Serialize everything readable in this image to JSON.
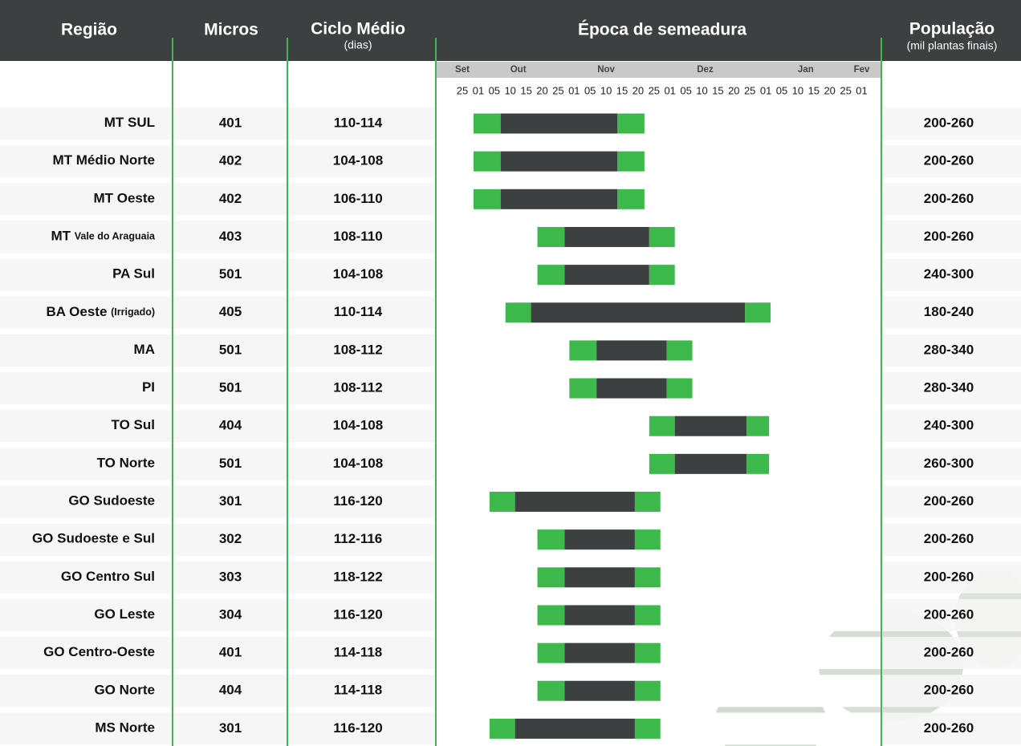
{
  "header": {
    "region": "Região",
    "micros": "Micros",
    "cycle": "Ciclo Médio",
    "cycle_unit": "(dias)",
    "sowing": "Época de semeadura",
    "population": "População",
    "population_unit": "(mil plantas finais)"
  },
  "timeline": {
    "months": [
      "Set",
      "Out",
      "Nov",
      "Dez",
      "Jan",
      "Fev"
    ],
    "days": [
      "25",
      "01",
      "05",
      "10",
      "15",
      "20",
      "25",
      "01",
      "05",
      "10",
      "15",
      "20",
      "25",
      "01",
      "05",
      "10",
      "15",
      "20",
      "25",
      "01",
      "05",
      "10",
      "15",
      "20",
      "25",
      "01"
    ]
  },
  "rows": [
    {
      "region": "MT SUL",
      "micros": "401",
      "cycle": "110-114",
      "population": "200-260",
      "window": [
        0.7,
        2.4,
        9.7,
        11.4
      ]
    },
    {
      "region": "MT Médio Norte",
      "micros": "402",
      "cycle": "104-108",
      "population": "200-260",
      "window": [
        0.7,
        2.4,
        9.7,
        11.4
      ]
    },
    {
      "region": "MT Oeste",
      "micros": "402",
      "cycle": "106-110",
      "population": "200-260",
      "window": [
        0.7,
        2.4,
        9.7,
        11.4
      ]
    },
    {
      "region": "MT",
      "region_note": "Vale do Araguaia",
      "micros": "403",
      "cycle": "108-110",
      "population": "200-260",
      "window": [
        4.7,
        6.4,
        11.7,
        13.3
      ]
    },
    {
      "region": "PA Sul",
      "micros": "501",
      "cycle": "104-108",
      "population": "240-300",
      "window": [
        4.7,
        6.4,
        11.7,
        13.3
      ]
    },
    {
      "region": "BA Oeste",
      "region_note": "(Irrigado)",
      "micros": "405",
      "cycle": "110-114",
      "population": "180-240",
      "window": [
        2.7,
        4.3,
        17.7,
        19.3
      ]
    },
    {
      "region": "MA",
      "micros": "501",
      "cycle": "108-112",
      "population": "280-340",
      "window": [
        6.7,
        8.4,
        12.8,
        14.4
      ]
    },
    {
      "region": "PI",
      "micros": "501",
      "cycle": "108-112",
      "population": "280-340",
      "window": [
        6.7,
        8.4,
        12.8,
        14.4
      ]
    },
    {
      "region": "TO Sul",
      "micros": "404",
      "cycle": "104-108",
      "population": "240-300",
      "window": [
        11.7,
        13.3,
        17.8,
        19.2
      ]
    },
    {
      "region": "TO Norte",
      "micros": "501",
      "cycle": "104-108",
      "population": "260-300",
      "window": [
        11.7,
        13.3,
        17.8,
        19.2
      ]
    },
    {
      "region": "GO Sudoeste",
      "micros": "301",
      "cycle": "116-120",
      "population": "200-260",
      "window": [
        1.7,
        3.3,
        10.8,
        12.4
      ]
    },
    {
      "region": "GO Sudoeste e Sul",
      "micros": "302",
      "cycle": "112-116",
      "population": "200-260",
      "window": [
        4.7,
        6.4,
        10.8,
        12.4
      ]
    },
    {
      "region": "GO Centro Sul",
      "micros": "303",
      "cycle": "118-122",
      "population": "200-260",
      "window": [
        4.7,
        6.4,
        10.8,
        12.4
      ]
    },
    {
      "region": "GO Leste",
      "micros": "304",
      "cycle": "116-120",
      "population": "200-260",
      "window": [
        4.7,
        6.4,
        10.8,
        12.4
      ]
    },
    {
      "region": "GO  Centro-Oeste",
      "micros": "401",
      "cycle": "114-118",
      "population": "200-260",
      "window": [
        4.7,
        6.4,
        10.8,
        12.4
      ]
    },
    {
      "region": "GO Norte",
      "micros": "404",
      "cycle": "114-118",
      "population": "200-260",
      "window": [
        4.7,
        6.4,
        10.8,
        12.4
      ]
    },
    {
      "region": "MS Norte",
      "micros": "301",
      "cycle": "116-120",
      "population": "200-260",
      "window": [
        1.7,
        3.3,
        10.8,
        12.4
      ]
    }
  ]
}
